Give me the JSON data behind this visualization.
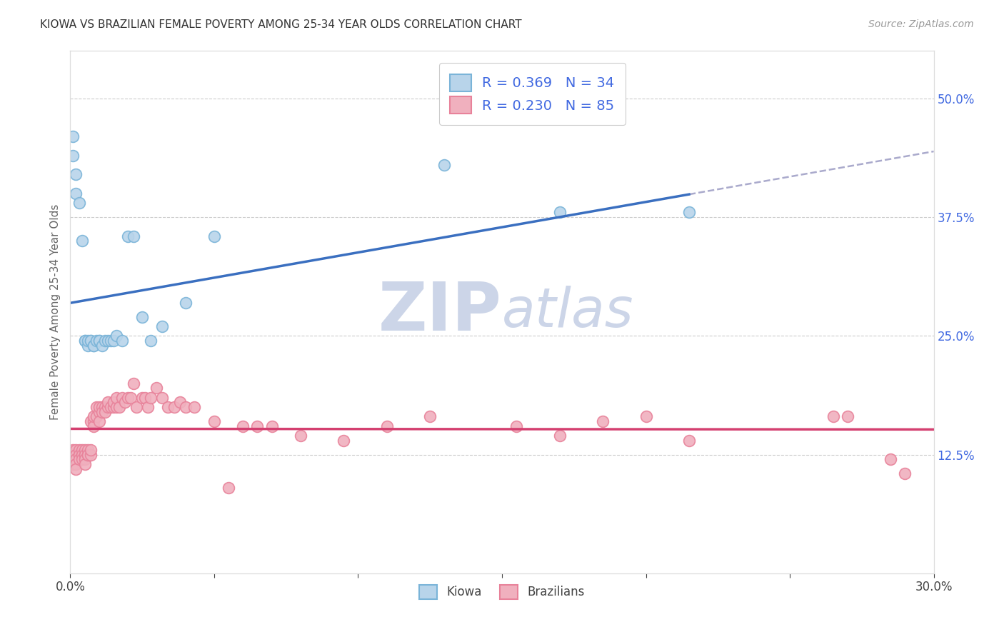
{
  "title": "KIOWA VS BRAZILIAN FEMALE POVERTY AMONG 25-34 YEAR OLDS CORRELATION CHART",
  "source": "Source: ZipAtlas.com",
  "ylabel": "Female Poverty Among 25-34 Year Olds",
  "right_yticks": [
    "50.0%",
    "37.5%",
    "25.0%",
    "12.5%"
  ],
  "right_ytick_vals": [
    0.5,
    0.375,
    0.25,
    0.125
  ],
  "xlim": [
    0.0,
    0.3
  ],
  "ylim": [
    0.0,
    0.55
  ],
  "kiowa_color": "#7ab4d8",
  "kiowa_face": "#b8d4ea",
  "brazilian_color": "#e8829a",
  "brazilian_face": "#f0b0be",
  "trendline_kiowa_color": "#3a6fc0",
  "trendline_brazilian_color": "#d44070",
  "dashed_line_color": "#aaaacc",
  "watermark_color": "#ccd5e8",
  "background_color": "#ffffff",
  "kiowa_x": [
    0.001,
    0.001,
    0.002,
    0.002,
    0.003,
    0.004,
    0.005,
    0.005,
    0.006,
    0.006,
    0.007,
    0.007,
    0.008,
    0.008,
    0.009,
    0.01,
    0.01,
    0.011,
    0.012,
    0.013,
    0.014,
    0.015,
    0.016,
    0.018,
    0.02,
    0.022,
    0.025,
    0.028,
    0.032,
    0.04,
    0.05,
    0.13,
    0.17,
    0.215
  ],
  "kiowa_y": [
    0.44,
    0.46,
    0.4,
    0.42,
    0.39,
    0.35,
    0.245,
    0.245,
    0.24,
    0.245,
    0.245,
    0.245,
    0.24,
    0.24,
    0.245,
    0.245,
    0.245,
    0.24,
    0.245,
    0.245,
    0.245,
    0.245,
    0.25,
    0.245,
    0.355,
    0.355,
    0.27,
    0.245,
    0.26,
    0.285,
    0.355,
    0.43,
    0.38,
    0.38
  ],
  "brazilian_x": [
    0.001,
    0.001,
    0.001,
    0.001,
    0.001,
    0.002,
    0.002,
    0.002,
    0.002,
    0.002,
    0.002,
    0.003,
    0.003,
    0.003,
    0.003,
    0.004,
    0.004,
    0.004,
    0.004,
    0.005,
    0.005,
    0.005,
    0.005,
    0.005,
    0.006,
    0.006,
    0.006,
    0.007,
    0.007,
    0.007,
    0.008,
    0.008,
    0.008,
    0.009,
    0.009,
    0.01,
    0.01,
    0.01,
    0.011,
    0.011,
    0.012,
    0.012,
    0.013,
    0.013,
    0.014,
    0.015,
    0.015,
    0.016,
    0.016,
    0.017,
    0.018,
    0.019,
    0.02,
    0.021,
    0.022,
    0.023,
    0.025,
    0.026,
    0.027,
    0.028,
    0.03,
    0.032,
    0.034,
    0.036,
    0.038,
    0.04,
    0.043,
    0.05,
    0.055,
    0.06,
    0.065,
    0.07,
    0.08,
    0.095,
    0.11,
    0.125,
    0.155,
    0.17,
    0.185,
    0.2,
    0.215,
    0.265,
    0.27,
    0.285,
    0.29
  ],
  "brazilian_y": [
    0.125,
    0.13,
    0.125,
    0.12,
    0.115,
    0.125,
    0.13,
    0.125,
    0.12,
    0.115,
    0.11,
    0.125,
    0.13,
    0.125,
    0.12,
    0.125,
    0.13,
    0.125,
    0.12,
    0.125,
    0.13,
    0.125,
    0.12,
    0.115,
    0.125,
    0.13,
    0.125,
    0.125,
    0.13,
    0.16,
    0.16,
    0.155,
    0.165,
    0.165,
    0.175,
    0.17,
    0.175,
    0.16,
    0.175,
    0.17,
    0.175,
    0.17,
    0.175,
    0.18,
    0.175,
    0.175,
    0.18,
    0.175,
    0.185,
    0.175,
    0.185,
    0.18,
    0.185,
    0.185,
    0.2,
    0.175,
    0.185,
    0.185,
    0.175,
    0.185,
    0.195,
    0.185,
    0.175,
    0.175,
    0.18,
    0.175,
    0.175,
    0.16,
    0.09,
    0.155,
    0.155,
    0.155,
    0.145,
    0.14,
    0.155,
    0.165,
    0.155,
    0.145,
    0.16,
    0.165,
    0.14,
    0.165,
    0.165,
    0.12,
    0.105
  ]
}
